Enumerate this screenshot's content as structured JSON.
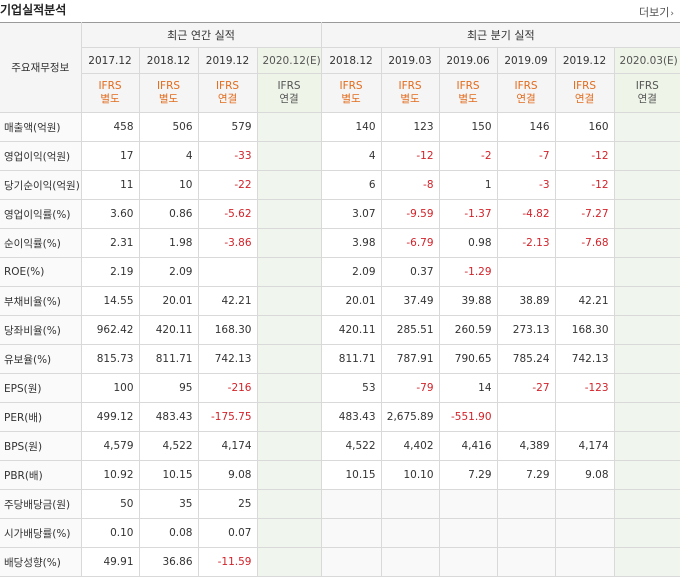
{
  "header": {
    "title": "기업실적분석",
    "more_label": "더보기"
  },
  "table": {
    "corner": "주요재무정보",
    "annual_label": "최근 연간 실적",
    "quarter_label": "최근 분기 실적",
    "periods": [
      "2017.12",
      "2018.12",
      "2019.12",
      "2020.12(E)",
      "2018.12",
      "2019.03",
      "2019.06",
      "2019.09",
      "2019.12",
      "2020.03(E)"
    ],
    "basis": [
      {
        "a": "IFRS",
        "b": "별도"
      },
      {
        "a": "IFRS",
        "b": "별도"
      },
      {
        "a": "IFRS",
        "b": "연결"
      },
      {
        "a": "IFRS",
        "b": "연결"
      },
      {
        "a": "IFRS",
        "b": "별도"
      },
      {
        "a": "IFRS",
        "b": "별도"
      },
      {
        "a": "IFRS",
        "b": "별도"
      },
      {
        "a": "IFRS",
        "b": "연결"
      },
      {
        "a": "IFRS",
        "b": "연결"
      },
      {
        "a": "IFRS",
        "b": "연결"
      }
    ],
    "rows": [
      {
        "label": "매출액(억원)",
        "values": [
          "458",
          "506",
          "579",
          "",
          "140",
          "123",
          "150",
          "146",
          "160",
          ""
        ]
      },
      {
        "label": "영업이익(억원)",
        "values": [
          "17",
          "4",
          "-33",
          "",
          "4",
          "-12",
          "-2",
          "-7",
          "-12",
          ""
        ]
      },
      {
        "label": "당기순이익(억원)",
        "values": [
          "11",
          "10",
          "-22",
          "",
          "6",
          "-8",
          "1",
          "-3",
          "-12",
          ""
        ]
      },
      {
        "label": "영업이익률(%)",
        "values": [
          "3.60",
          "0.86",
          "-5.62",
          "",
          "3.07",
          "-9.59",
          "-1.37",
          "-4.82",
          "-7.27",
          ""
        ]
      },
      {
        "label": "순이익률(%)",
        "values": [
          "2.31",
          "1.98",
          "-3.86",
          "",
          "3.98",
          "-6.79",
          "0.98",
          "-2.13",
          "-7.68",
          ""
        ]
      },
      {
        "label": "ROE(%)",
        "values": [
          "2.19",
          "2.09",
          "",
          "",
          "2.09",
          "0.37",
          "-1.29",
          "",
          "",
          ""
        ]
      },
      {
        "label": "부채비율(%)",
        "values": [
          "14.55",
          "20.01",
          "42.21",
          "",
          "20.01",
          "37.49",
          "39.88",
          "38.89",
          "42.21",
          ""
        ]
      },
      {
        "label": "당좌비율(%)",
        "values": [
          "962.42",
          "420.11",
          "168.30",
          "",
          "420.11",
          "285.51",
          "260.59",
          "273.13",
          "168.30",
          ""
        ]
      },
      {
        "label": "유보율(%)",
        "values": [
          "815.73",
          "811.71",
          "742.13",
          "",
          "811.71",
          "787.91",
          "790.65",
          "785.24",
          "742.13",
          ""
        ]
      },
      {
        "label": "EPS(원)",
        "values": [
          "100",
          "95",
          "-216",
          "",
          "53",
          "-79",
          "14",
          "-27",
          "-123",
          ""
        ]
      },
      {
        "label": "PER(배)",
        "values": [
          "499.12",
          "483.43",
          "-175.75",
          "",
          "483.43",
          "2,675.89",
          "-551.90",
          "",
          "",
          ""
        ]
      },
      {
        "label": "BPS(원)",
        "values": [
          "4,579",
          "4,522",
          "4,174",
          "",
          "4,522",
          "4,402",
          "4,416",
          "4,389",
          "4,174",
          ""
        ]
      },
      {
        "label": "PBR(배)",
        "values": [
          "10.92",
          "10.15",
          "9.08",
          "",
          "10.15",
          "10.10",
          "7.29",
          "7.29",
          "9.08",
          ""
        ]
      },
      {
        "label": "주당배당금(원)",
        "values": [
          "50",
          "35",
          "25",
          "",
          "",
          "",
          "",
          "",
          "",
          ""
        ]
      },
      {
        "label": "시가배당률(%)",
        "values": [
          "0.10",
          "0.08",
          "0.07",
          "",
          "",
          "",
          "",
          "",
          "",
          ""
        ]
      },
      {
        "label": "배당성향(%)",
        "values": [
          "49.91",
          "36.86",
          "-11.59",
          "",
          "",
          "",
          "",
          "",
          "",
          ""
        ]
      }
    ]
  },
  "colors": {
    "negative": "#d2232a",
    "ifrs": "#e26b1c",
    "estimate_bg": "#f0f5ed"
  }
}
